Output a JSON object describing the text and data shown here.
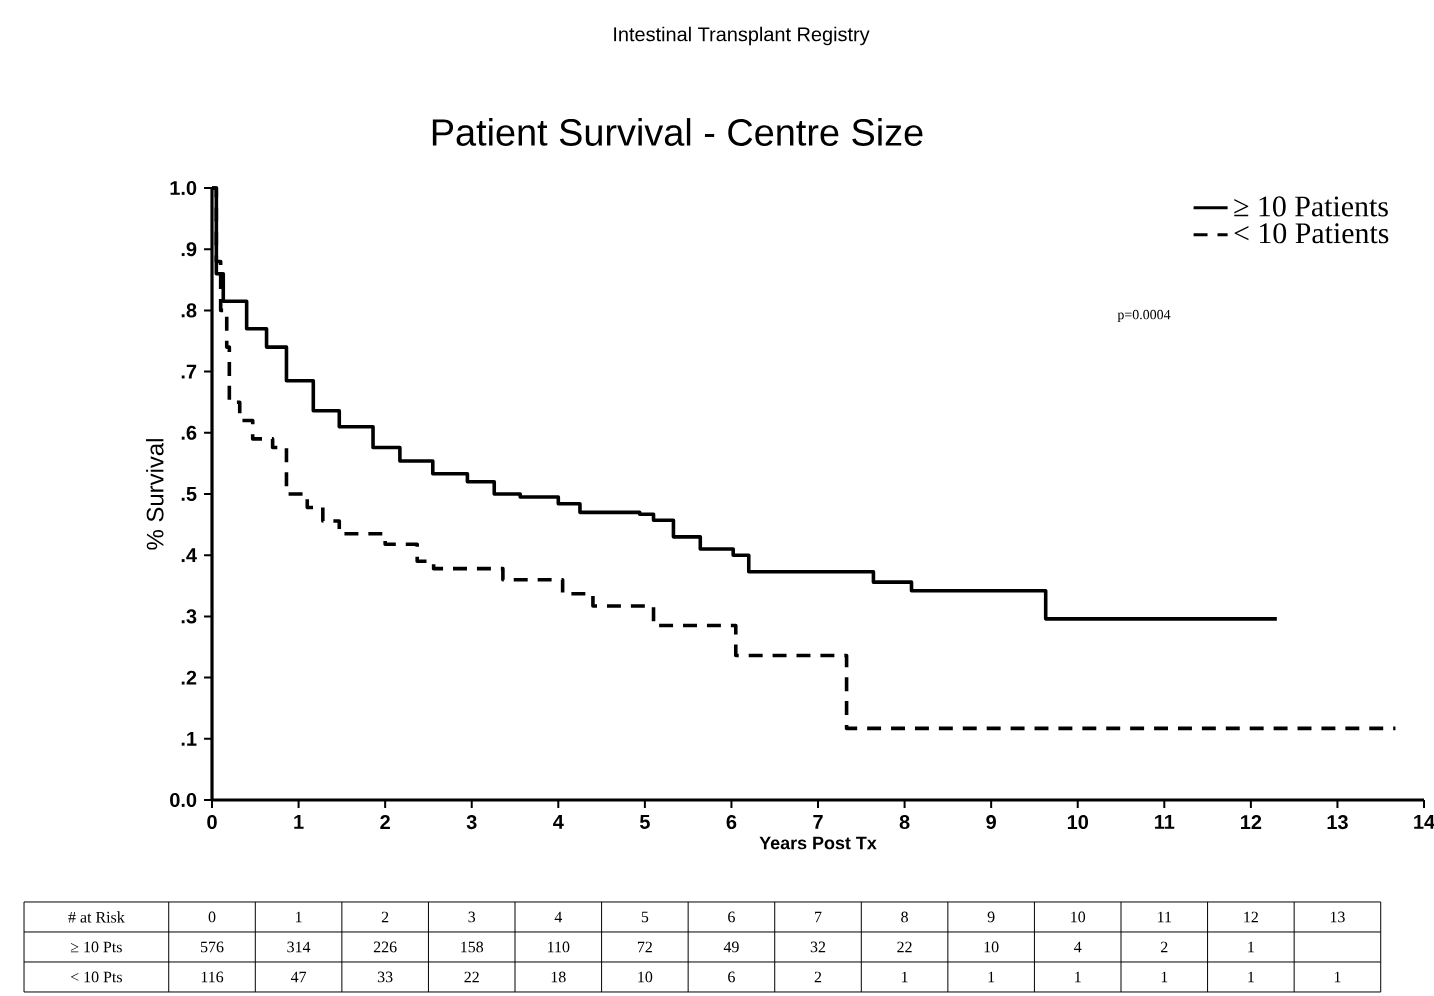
{
  "chart_data": {
    "type": "step",
    "subtitle": "Intestinal Transplant Registry",
    "title": "Patient Survival - Centre Size",
    "xlabel": "Years Post Tx",
    "ylabel": "% Survival",
    "xlim": [
      0,
      14
    ],
    "xticks": [
      0,
      1,
      2,
      3,
      4,
      5,
      6,
      7,
      8,
      9,
      10,
      11,
      12,
      13,
      14
    ],
    "ylim": [
      0,
      1
    ],
    "yticks": [
      {
        "value": 0,
        "label": "0.0"
      },
      {
        "value": 0.1,
        "label": ".1"
      },
      {
        "value": 0.2,
        "label": ".2"
      },
      {
        "value": 0.3,
        "label": ".3"
      },
      {
        "value": 0.4,
        "label": ".4"
      },
      {
        "value": 0.5,
        "label": ".5"
      },
      {
        "value": 0.6,
        "label": ".6"
      },
      {
        "value": 0.7,
        "label": ".7"
      },
      {
        "value": 0.8,
        "label": ".8"
      },
      {
        "value": 0.9,
        "label": ".9"
      },
      {
        "value": 1,
        "label": "1.0"
      }
    ],
    "legend": "top right",
    "grid": false,
    "marker": "none",
    "series": [
      {
        "name": "≥ 10 Patients",
        "color": "#000000",
        "line_style": "solid",
        "x": [
          0,
          0.05,
          0.13,
          0.4,
          0.63,
          0.86,
          1.17,
          1.47,
          1.86,
          2.17,
          2.55,
          2.95,
          3.26,
          3.56,
          4.0,
          4.25,
          4.94,
          5.1,
          5.33,
          5.64,
          6.02,
          6.2,
          7.64,
          8.08,
          9.63,
          12.3
        ],
        "values": [
          1.0,
          0.86,
          0.815,
          0.77,
          0.74,
          0.685,
          0.636,
          0.61,
          0.576,
          0.554,
          0.533,
          0.52,
          0.5,
          0.495,
          0.484,
          0.47,
          0.467,
          0.457,
          0.43,
          0.41,
          0.4,
          0.373,
          0.356,
          0.342,
          0.296,
          0.296
        ]
      },
      {
        "name": "< 10 Patients",
        "color": "#000000",
        "line_style": "dashed",
        "x": [
          0,
          0.05,
          0.1,
          0.17,
          0.2,
          0.32,
          0.47,
          0.7,
          0.86,
          1.1,
          1.28,
          1.47,
          2.0,
          2.37,
          2.56,
          3.36,
          4.05,
          4.4,
          5.1,
          6.05,
          7.33,
          13.67
        ],
        "values": [
          1.0,
          0.88,
          0.8,
          0.74,
          0.65,
          0.62,
          0.59,
          0.576,
          0.5,
          0.478,
          0.456,
          0.435,
          0.418,
          0.39,
          0.378,
          0.36,
          0.337,
          0.317,
          0.285,
          0.236,
          0.117,
          0.117
        ]
      }
    ],
    "annotations": [
      "p=0.0004",
      "# at Risk",
      "0",
      "1",
      "2",
      "3",
      "4",
      "5",
      "6",
      "7",
      "8",
      "9",
      "10",
      "11",
      "12",
      "13",
      "≥ 10 Pts",
      "576",
      "314",
      "226",
      "158",
      "110",
      "72",
      "49",
      "32",
      "22",
      "10",
      "4",
      "2",
      "1",
      "< 10 Pts",
      "116",
      "47",
      "33",
      "22",
      "18",
      "10",
      "6",
      "2",
      "1",
      "1",
      "1",
      "1",
      "1",
      "1"
    ]
  }
}
